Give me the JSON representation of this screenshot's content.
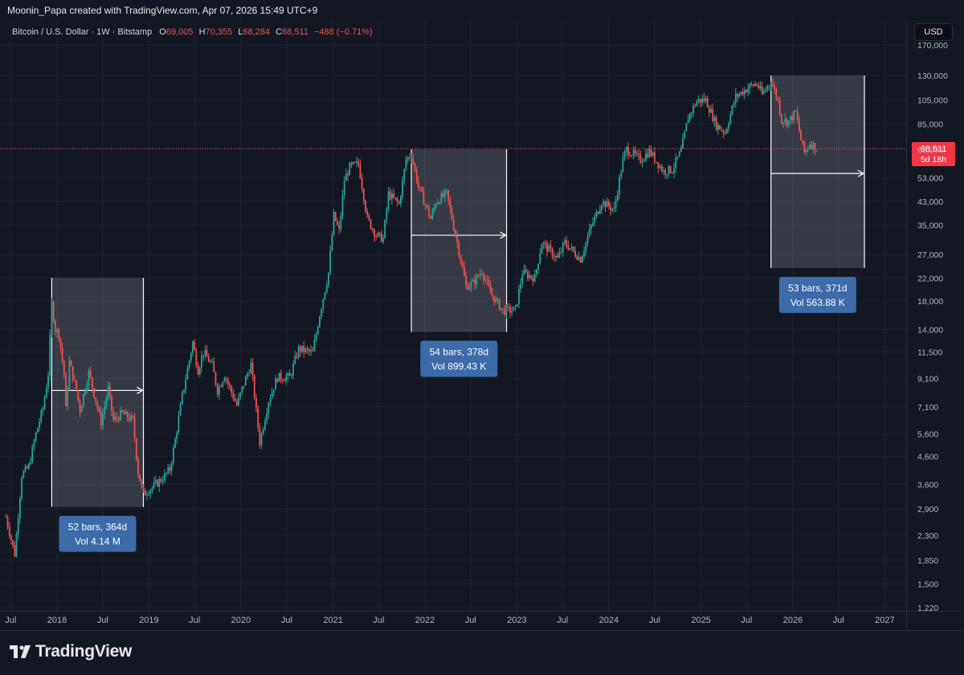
{
  "header": {
    "credit": "Moonin_Papa created with TradingView.com, Apr 07, 2026 15:49 UTC+9"
  },
  "legend": {
    "symbol": "Bitcoin / U.S. Dollar · 1W · Bitstamp",
    "open_label": "O",
    "open_value": "69,005",
    "high_label": "H",
    "high_value": "70,355",
    "low_label": "L",
    "low_value": "68,284",
    "close_label": "C",
    "close_value": "68,511",
    "change": "−488 (−0.71%)"
  },
  "currency_button": "USD",
  "footer": {
    "brand": "TradingView"
  },
  "colors": {
    "up": "#26a69a",
    "down": "#ef5350",
    "background": "#131722",
    "grid": "#1e222d",
    "annotation": "#3d6aa8"
  },
  "chart_data": {
    "type": "candlestick",
    "scale": "log",
    "y_ticks": [
      "1,220",
      "1,500",
      "1,850",
      "2,300",
      "2,900",
      "3,600",
      "4,600",
      "5,600",
      "7,100",
      "9,100",
      "11,500",
      "14,000",
      "18,000",
      "22,000",
      "27,000",
      "35,000",
      "43,000",
      "53,000",
      "68,000",
      "85,000",
      "105,000",
      "130,000",
      "170,000"
    ],
    "x_ticks": [
      {
        "label": "Jul",
        "date": "2017-07-01"
      },
      {
        "label": "2018",
        "date": "2018-01-01"
      },
      {
        "label": "Jul",
        "date": "2018-07-01"
      },
      {
        "label": "2019",
        "date": "2019-01-01"
      },
      {
        "label": "Jul",
        "date": "2019-07-01"
      },
      {
        "label": "2020",
        "date": "2020-01-01"
      },
      {
        "label": "Jul",
        "date": "2020-07-01"
      },
      {
        "label": "2021",
        "date": "2021-01-01"
      },
      {
        "label": "Jul",
        "date": "2021-07-01"
      },
      {
        "label": "2022",
        "date": "2022-01-01"
      },
      {
        "label": "Jul",
        "date": "2022-07-01"
      },
      {
        "label": "2023",
        "date": "2023-01-01"
      },
      {
        "label": "Jul",
        "date": "2023-07-01"
      },
      {
        "label": "2024",
        "date": "2024-01-01"
      },
      {
        "label": "Jul",
        "date": "2024-07-01"
      },
      {
        "label": "2025",
        "date": "2025-01-01"
      },
      {
        "label": "Jul",
        "date": "2025-07-01"
      },
      {
        "label": "2026",
        "date": "2026-01-01"
      },
      {
        "label": "Jul",
        "date": "2026-07-01"
      },
      {
        "label": "2027",
        "date": "2027-01-01"
      }
    ],
    "price_series": [
      [
        "2017-06-12",
        2700
      ],
      [
        "2017-07-17",
        1950
      ],
      [
        "2017-08-14",
        3900
      ],
      [
        "2017-09-11",
        4200
      ],
      [
        "2017-10-09",
        5600
      ],
      [
        "2017-11-06",
        7000
      ],
      [
        "2017-11-27",
        9500
      ],
      [
        "2017-12-11",
        17500
      ],
      [
        "2017-12-25",
        14000
      ],
      [
        "2018-01-08",
        13500
      ],
      [
        "2018-01-29",
        9500
      ],
      [
        "2018-02-05",
        6900
      ],
      [
        "2018-02-19",
        10500
      ],
      [
        "2018-03-19",
        8200
      ],
      [
        "2018-04-02",
        6900
      ],
      [
        "2018-05-07",
        9600
      ],
      [
        "2018-06-25",
        6200
      ],
      [
        "2018-07-23",
        8300
      ],
      [
        "2018-08-13",
        6300
      ],
      [
        "2018-09-17",
        6700
      ],
      [
        "2018-10-29",
        6300
      ],
      [
        "2018-11-19",
        4000
      ],
      [
        "2018-12-10",
        3300
      ],
      [
        "2019-01-21",
        3550
      ],
      [
        "2019-02-25",
        3800
      ],
      [
        "2019-03-25",
        4100
      ],
      [
        "2019-04-15",
        5300
      ],
      [
        "2019-05-13",
        7800
      ],
      [
        "2019-06-24",
        12500
      ],
      [
        "2019-07-15",
        9800
      ],
      [
        "2019-08-05",
        11500
      ],
      [
        "2019-09-09",
        10200
      ],
      [
        "2019-09-30",
        8200
      ],
      [
        "2019-10-28",
        9400
      ],
      [
        "2019-12-16",
        7200
      ],
      [
        "2020-01-13",
        8700
      ],
      [
        "2020-02-10",
        10300
      ],
      [
        "2020-03-16",
        5200
      ],
      [
        "2020-04-20",
        7500
      ],
      [
        "2020-05-25",
        9200
      ],
      [
        "2020-07-13",
        9200
      ],
      [
        "2020-08-17",
        11800
      ],
      [
        "2020-10-12",
        11400
      ],
      [
        "2020-11-09",
        16000
      ],
      [
        "2020-12-14",
        23000
      ],
      [
        "2021-01-04",
        38000
      ],
      [
        "2021-01-25",
        33000
      ],
      [
        "2021-02-15",
        52000
      ],
      [
        "2021-03-08",
        58000
      ],
      [
        "2021-04-12",
        60000
      ],
      [
        "2021-05-17",
        37000
      ],
      [
        "2021-06-21",
        32000
      ],
      [
        "2021-07-19",
        31000
      ],
      [
        "2021-08-09",
        46000
      ],
      [
        "2021-09-20",
        42000
      ],
      [
        "2021-10-18",
        62000
      ],
      [
        "2021-11-08",
        65000
      ],
      [
        "2021-12-06",
        49000
      ],
      [
        "2022-01-24",
        37000
      ],
      [
        "2022-02-14",
        43000
      ],
      [
        "2022-03-28",
        46000
      ],
      [
        "2022-05-09",
        30000
      ],
      [
        "2022-06-13",
        20500
      ],
      [
        "2022-07-11",
        21000
      ],
      [
        "2022-08-15",
        23500
      ],
      [
        "2022-09-19",
        19200
      ],
      [
        "2022-11-07",
        16500
      ],
      [
        "2022-12-26",
        16600
      ],
      [
        "2023-01-23",
        23000
      ],
      [
        "2023-03-13",
        22000
      ],
      [
        "2023-04-10",
        30000
      ],
      [
        "2023-06-12",
        26000
      ],
      [
        "2023-07-10",
        30000
      ],
      [
        "2023-09-11",
        26000
      ],
      [
        "2023-10-23",
        34500
      ],
      [
        "2023-12-04",
        43000
      ],
      [
        "2024-01-22",
        40000
      ],
      [
        "2024-02-26",
        62000
      ],
      [
        "2024-03-11",
        68000
      ],
      [
        "2024-05-06",
        62000
      ],
      [
        "2024-06-10",
        67000
      ],
      [
        "2024-08-05",
        56000
      ],
      [
        "2024-09-09",
        57000
      ],
      [
        "2024-10-14",
        67000
      ],
      [
        "2024-11-11",
        90000
      ],
      [
        "2024-12-16",
        104000
      ],
      [
        "2025-01-20",
        105000
      ],
      [
        "2025-03-03",
        84000
      ],
      [
        "2025-04-07",
        79000
      ],
      [
        "2025-05-19",
        108000
      ],
      [
        "2025-07-14",
        118000
      ],
      [
        "2025-08-11",
        121000
      ],
      [
        "2025-09-01",
        110000
      ],
      [
        "2025-10-06",
        124000
      ],
      [
        "2025-11-03",
        104000
      ],
      [
        "2025-11-17",
        88000
      ],
      [
        "2025-12-15",
        87000
      ],
      [
        "2026-01-12",
        94000
      ],
      [
        "2026-02-02",
        74000
      ],
      [
        "2026-02-16",
        66000
      ],
      [
        "2026-03-09",
        72000
      ],
      [
        "2026-04-06",
        68511
      ]
    ],
    "current_price": 68511,
    "current_price_label": "68,511",
    "countdown": "5d 18h",
    "ranges": [
      {
        "start": "2017-12-11",
        "end": "2018-12-10",
        "top": 22000,
        "bottom": 2950,
        "arrow_price": 8200,
        "label_bars": "52 bars, 364d",
        "label_vol": "Vol 4.14 M"
      },
      {
        "start": "2021-11-08",
        "end": "2022-11-21",
        "top": 68000,
        "bottom": 13700,
        "arrow_price": 32000,
        "label_bars": "54 bars, 378d",
        "label_vol": "Vol 899.43 K"
      },
      {
        "start": "2025-10-06",
        "end": "2026-10-12",
        "top": 130000,
        "bottom": 24000,
        "arrow_price": 55000,
        "label_bars": "53 bars, 371d",
        "label_vol": "Vol 563.88 K"
      }
    ]
  }
}
